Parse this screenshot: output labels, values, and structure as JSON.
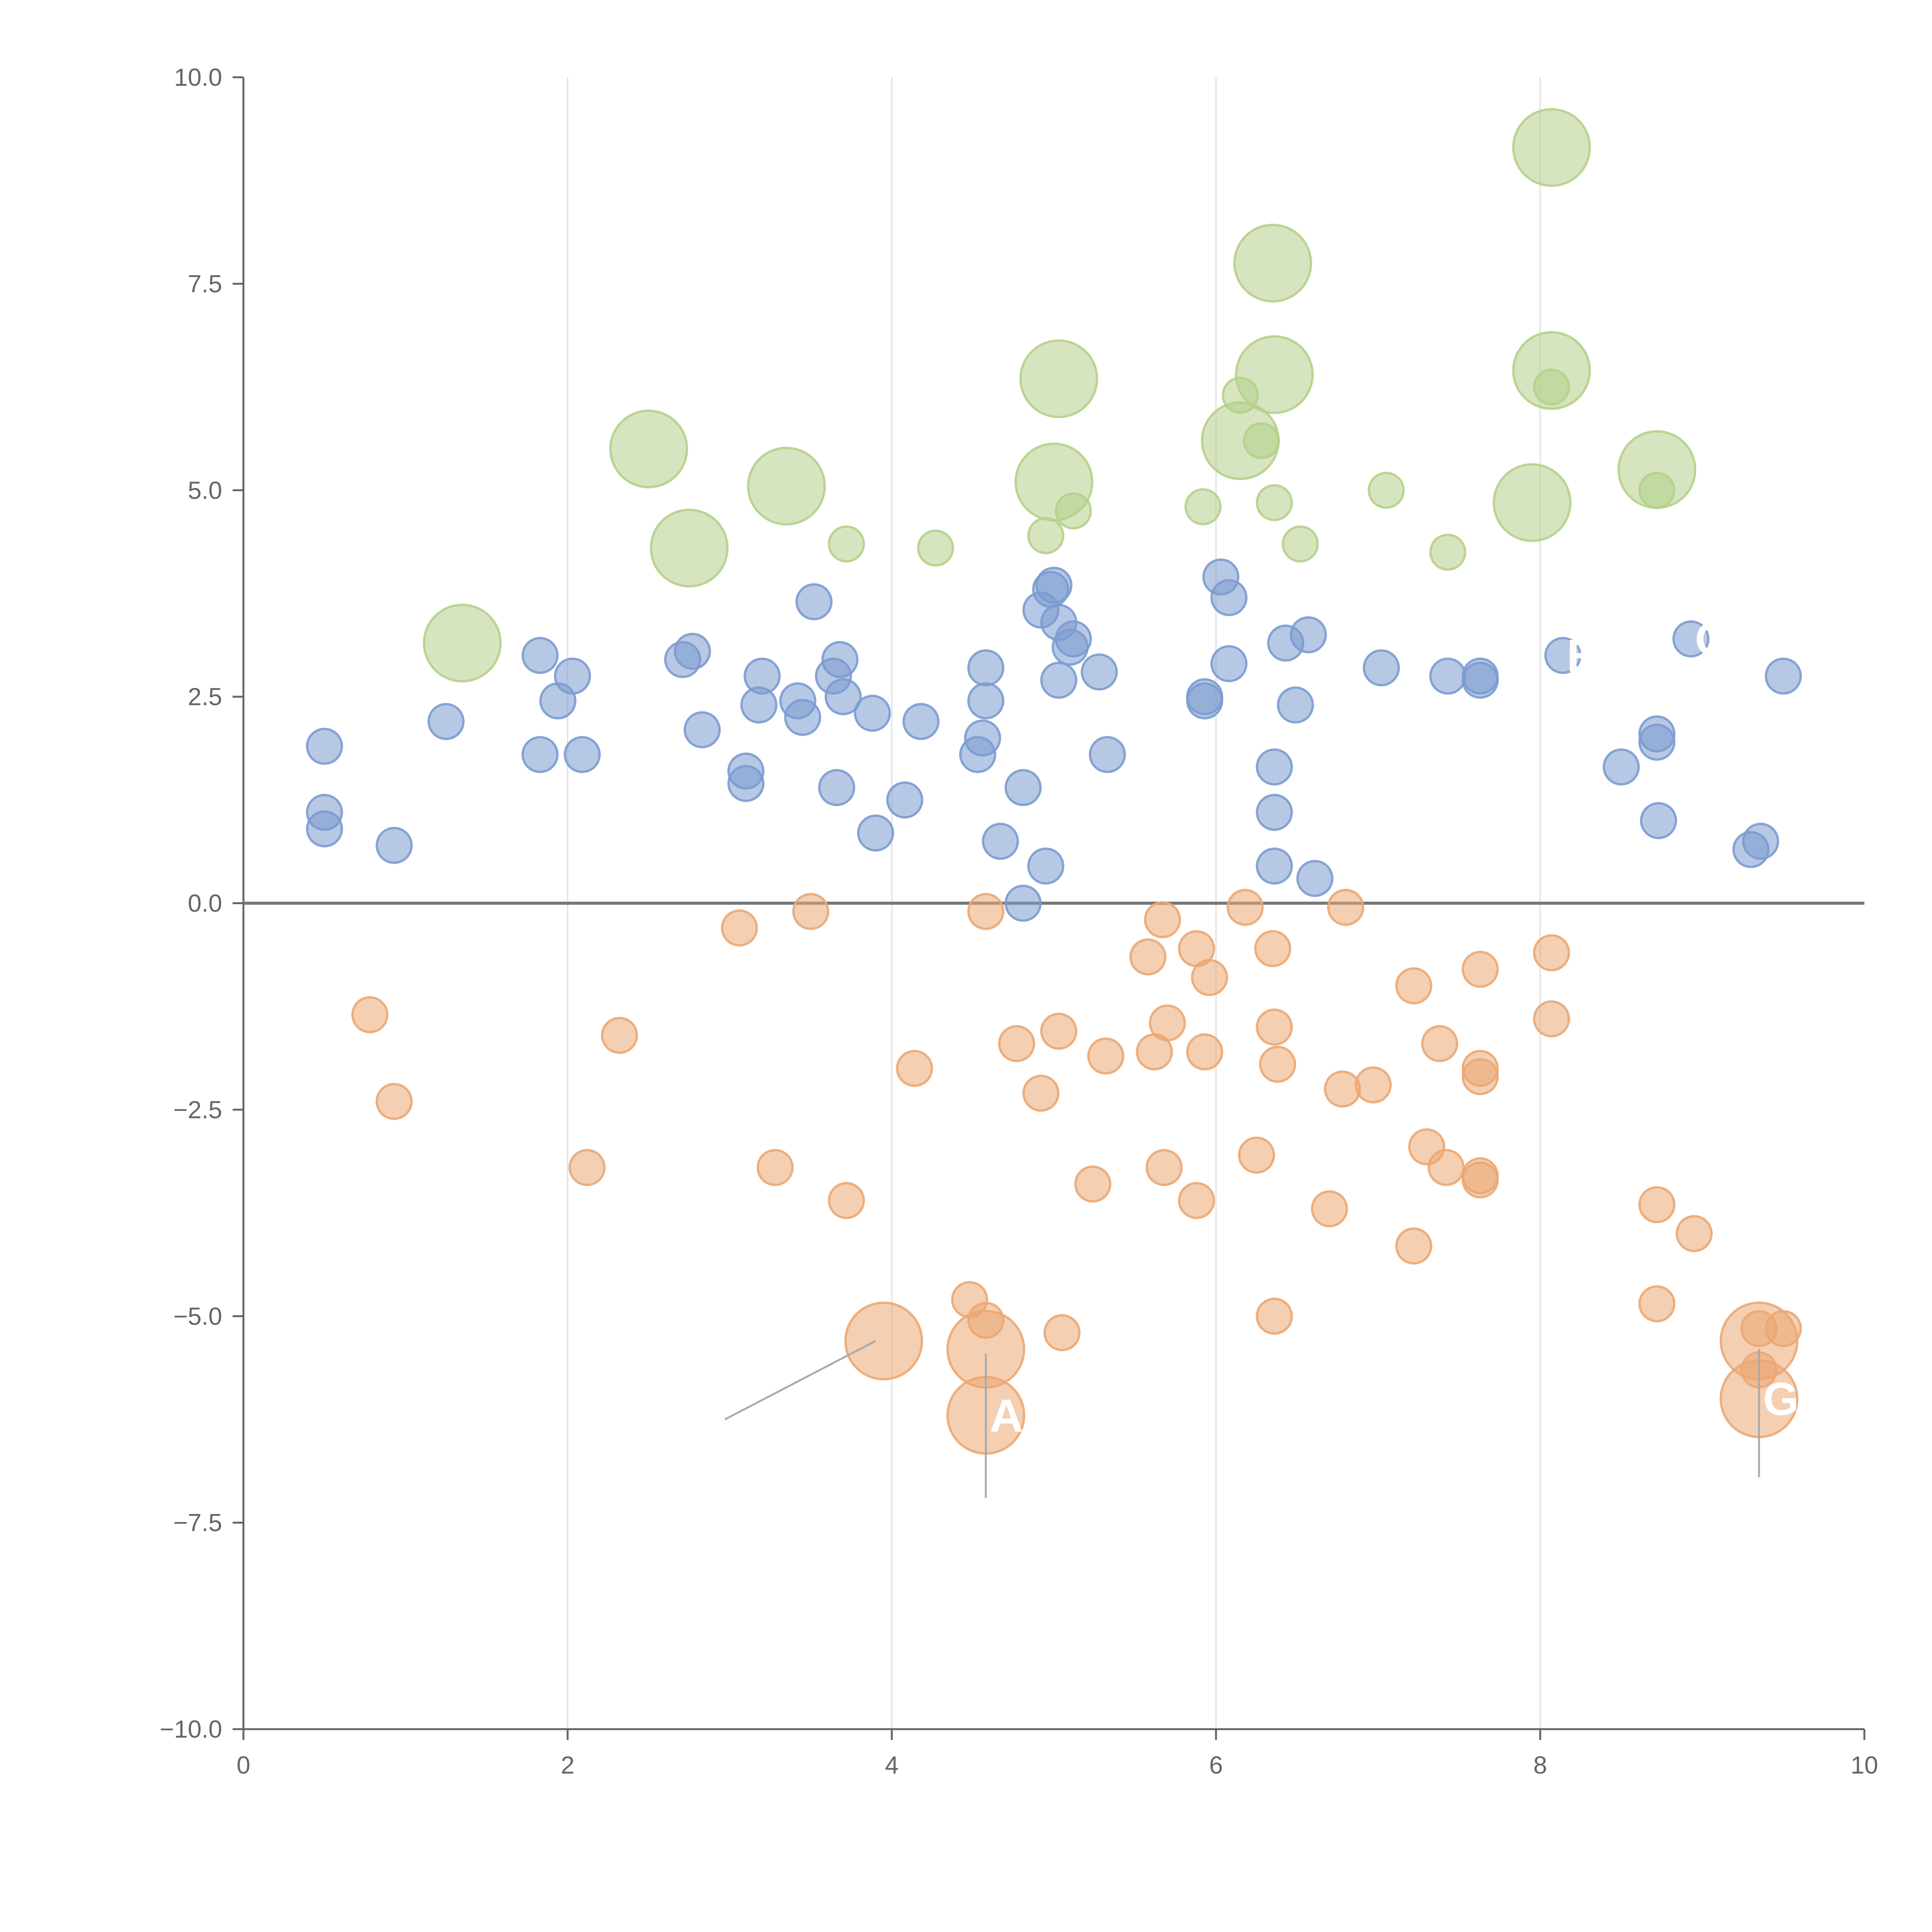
{
  "chart_data": {
    "type": "scatter",
    "title": "",
    "xlabel": "",
    "ylabel": "",
    "xlim": [
      0,
      10
    ],
    "ylim": [
      -10,
      10
    ],
    "x_ticks": [
      0,
      2,
      4,
      6,
      8,
      10
    ],
    "x_tick_labels": [
      "0",
      "2",
      "4",
      "6",
      "8",
      "10"
    ],
    "y_ticks": [
      10,
      7.5,
      5,
      2.5,
      0,
      -2.5,
      -5,
      -7.5,
      -10
    ],
    "y_tick_labels": [
      "10.0",
      "7.5",
      "5.0",
      "2.5",
      "0.0",
      "−2.5",
      "−5.0",
      "−7.5",
      "−10.0"
    ],
    "grid": "vertical",
    "zero_line": true,
    "colors": {
      "blue": "#7b9bd0",
      "orange": "#eba772",
      "green": "#b5d08a"
    },
    "series": [
      {
        "name": "blue",
        "color": "#7b9bd0",
        "points": [
          [
            0.5,
            1.9,
            1
          ],
          [
            0.5,
            1.1,
            1
          ],
          [
            0.5,
            0.9,
            1
          ],
          [
            0.93,
            0.7,
            1
          ],
          [
            1.25,
            2.2,
            1
          ],
          [
            1.83,
            3.0,
            1
          ],
          [
            1.83,
            1.8,
            1
          ],
          [
            1.94,
            2.45,
            1
          ],
          [
            2.03,
            2.75,
            1
          ],
          [
            2.09,
            1.8,
            1
          ],
          [
            2.71,
            2.95,
            1
          ],
          [
            2.77,
            3.05,
            1
          ],
          [
            2.83,
            2.1,
            1
          ],
          [
            3.1,
            1.6,
            1
          ],
          [
            3.1,
            1.45,
            1
          ],
          [
            3.18,
            2.4,
            1
          ],
          [
            3.2,
            2.75,
            1
          ],
          [
            3.42,
            2.45,
            1
          ],
          [
            3.45,
            2.25,
            1
          ],
          [
            3.52,
            3.65,
            1
          ],
          [
            3.64,
            2.75,
            1
          ],
          [
            3.66,
            1.4,
            1
          ],
          [
            3.68,
            2.95,
            1
          ],
          [
            3.7,
            2.5,
            1
          ],
          [
            3.88,
            2.3,
            1
          ],
          [
            3.9,
            0.85,
            1
          ],
          [
            4.08,
            1.25,
            1
          ],
          [
            4.18,
            2.2,
            1
          ],
          [
            4.53,
            1.8,
            1
          ],
          [
            4.56,
            2.0,
            1
          ],
          [
            4.58,
            2.85,
            1
          ],
          [
            4.58,
            2.45,
            1
          ],
          [
            4.67,
            0.75,
            1
          ],
          [
            4.81,
            1.4,
            1
          ],
          [
            4.81,
            0.0,
            1
          ],
          [
            4.92,
            3.55,
            1
          ],
          [
            4.95,
            0.45,
            1
          ],
          [
            4.98,
            3.8,
            1
          ],
          [
            5.0,
            3.85,
            1
          ],
          [
            5.03,
            3.4,
            1
          ],
          [
            5.03,
            2.7,
            1
          ],
          [
            5.1,
            3.1,
            1
          ],
          [
            5.12,
            3.2,
            1
          ],
          [
            5.28,
            2.8,
            1
          ],
          [
            5.33,
            1.8,
            1
          ],
          [
            5.93,
            2.5,
            1
          ],
          [
            5.93,
            2.45,
            1
          ],
          [
            6.03,
            3.95,
            1
          ],
          [
            6.08,
            3.7,
            1
          ],
          [
            6.08,
            2.9,
            1
          ],
          [
            6.36,
            1.65,
            1
          ],
          [
            6.36,
            1.1,
            1
          ],
          [
            6.36,
            0.45,
            1
          ],
          [
            6.43,
            3.15,
            1
          ],
          [
            6.49,
            2.4,
            1
          ],
          [
            6.57,
            3.25,
            1
          ],
          [
            6.61,
            0.3,
            1
          ],
          [
            7.02,
            2.85,
            1
          ],
          [
            7.43,
            2.75,
            1
          ],
          [
            7.63,
            2.75,
            1
          ],
          [
            7.63,
            2.7,
            1
          ],
          [
            8.14,
            3.0,
            1
          ],
          [
            8.5,
            1.65,
            1
          ],
          [
            8.72,
            2.05,
            1
          ],
          [
            8.72,
            1.95,
            1
          ],
          [
            8.73,
            1.0,
            1
          ],
          [
            8.93,
            3.2,
            1
          ],
          [
            9.3,
            0.65,
            1
          ],
          [
            9.36,
            0.75,
            1
          ],
          [
            9.5,
            2.75,
            1
          ]
        ]
      },
      {
        "name": "orange",
        "color": "#eba772",
        "points": [
          [
            0.78,
            -1.35,
            1
          ],
          [
            0.93,
            -2.4,
            1
          ],
          [
            2.12,
            -3.2,
            1
          ],
          [
            2.32,
            -1.6,
            1
          ],
          [
            3.06,
            -0.3,
            1
          ],
          [
            3.28,
            -3.2,
            1
          ],
          [
            3.5,
            -0.1,
            1
          ],
          [
            3.72,
            -3.6,
            1
          ],
          [
            3.95,
            -5.3,
            2.2
          ],
          [
            4.14,
            -2.0,
            1
          ],
          [
            4.48,
            -4.8,
            1
          ],
          [
            4.58,
            -5.05,
            1
          ],
          [
            4.58,
            -0.1,
            1
          ],
          [
            4.58,
            -5.4,
            2.2
          ],
          [
            4.58,
            -6.2,
            2.2
          ],
          [
            4.77,
            -1.7,
            1
          ],
          [
            4.92,
            -2.3,
            1
          ],
          [
            5.03,
            -1.55,
            1
          ],
          [
            5.05,
            -5.2,
            1
          ],
          [
            5.24,
            -3.4,
            1
          ],
          [
            5.32,
            -1.85,
            1
          ],
          [
            5.58,
            -0.65,
            1
          ],
          [
            5.62,
            -1.8,
            1
          ],
          [
            5.67,
            -0.2,
            1
          ],
          [
            5.68,
            -3.2,
            1
          ],
          [
            5.7,
            -1.45,
            1
          ],
          [
            5.88,
            -0.55,
            1
          ],
          [
            5.88,
            -3.6,
            1
          ],
          [
            5.93,
            -1.8,
            1
          ],
          [
            5.96,
            -0.9,
            1
          ],
          [
            6.18,
            -0.05,
            1
          ],
          [
            6.25,
            -3.05,
            1
          ],
          [
            6.35,
            -0.55,
            1
          ],
          [
            6.36,
            -1.5,
            1
          ],
          [
            6.36,
            -5.0,
            1
          ],
          [
            6.38,
            -1.95,
            1
          ],
          [
            6.7,
            -3.7,
            1
          ],
          [
            6.78,
            -2.25,
            1
          ],
          [
            6.8,
            -0.05,
            1
          ],
          [
            6.97,
            -2.2,
            1
          ],
          [
            7.22,
            -1.0,
            1
          ],
          [
            7.22,
            -4.15,
            1
          ],
          [
            7.3,
            -2.95,
            1
          ],
          [
            7.38,
            -1.7,
            1
          ],
          [
            7.42,
            -3.2,
            1
          ],
          [
            7.63,
            -0.8,
            1
          ],
          [
            7.63,
            -2.0,
            1
          ],
          [
            7.63,
            -2.1,
            1
          ],
          [
            7.63,
            -3.3,
            1
          ],
          [
            7.63,
            -3.35,
            1
          ],
          [
            8.07,
            -0.6,
            1
          ],
          [
            8.07,
            -1.4,
            1
          ],
          [
            8.72,
            -3.65,
            1
          ],
          [
            8.72,
            -4.85,
            1
          ],
          [
            8.95,
            -4.0,
            1
          ],
          [
            9.35,
            -5.3,
            2.2
          ],
          [
            9.35,
            -6.0,
            2.2
          ],
          [
            9.35,
            -5.15,
            1
          ],
          [
            9.35,
            -5.65,
            1
          ],
          [
            9.5,
            -5.15,
            1
          ]
        ]
      },
      {
        "name": "green",
        "color": "#b5d08a",
        "points": [
          [
            1.35,
            3.15,
            2.2
          ],
          [
            2.5,
            5.5,
            2.2
          ],
          [
            2.75,
            4.3,
            2.2
          ],
          [
            3.35,
            5.05,
            2.2
          ],
          [
            3.72,
            4.35,
            1
          ],
          [
            4.27,
            4.3,
            1
          ],
          [
            4.95,
            4.45,
            1
          ],
          [
            5.03,
            6.35,
            2.2
          ],
          [
            5.0,
            5.1,
            2.2
          ],
          [
            5.12,
            4.75,
            1
          ],
          [
            5.92,
            4.8,
            1
          ],
          [
            6.15,
            6.15,
            1
          ],
          [
            6.28,
            5.6,
            1
          ],
          [
            6.15,
            5.6,
            2.2
          ],
          [
            6.35,
            7.75,
            2.2
          ],
          [
            6.36,
            6.4,
            2.2
          ],
          [
            6.36,
            4.85,
            1
          ],
          [
            6.52,
            4.35,
            1
          ],
          [
            7.05,
            5.0,
            1
          ],
          [
            7.43,
            4.25,
            1
          ],
          [
            7.95,
            4.85,
            2.2
          ],
          [
            8.07,
            9.15,
            2.2
          ],
          [
            8.07,
            6.45,
            2.2
          ],
          [
            8.07,
            6.25,
            1
          ],
          [
            8.72,
            5.25,
            2.2
          ],
          [
            8.72,
            5.0,
            1
          ]
        ]
      }
    ],
    "annotations": [
      {
        "text": "A",
        "x": 4.58,
        "y": -6.2
      },
      {
        "text": "G",
        "x": 9.35,
        "y": -6.0
      },
      {
        "text": "E",
        "x": 8.14,
        "y": 3.0
      },
      {
        "text": "O",
        "x": 8.93,
        "y": 3.2
      }
    ]
  }
}
